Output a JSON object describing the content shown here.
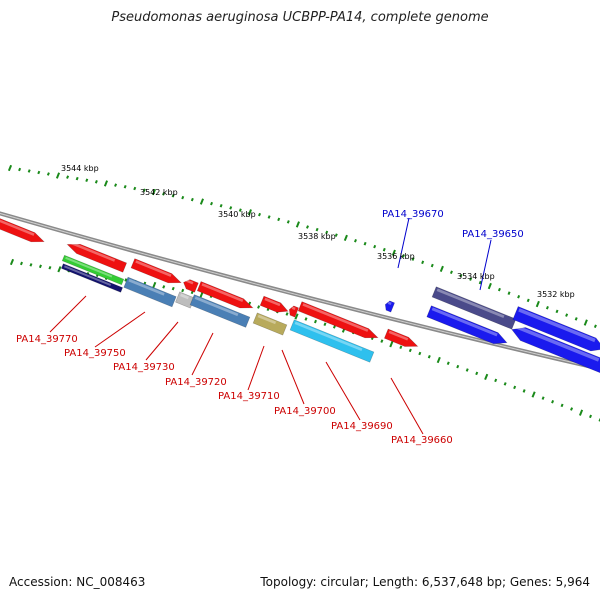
{
  "title": "Pseudomonas aeruginosa UCBPP-PA14, complete genome",
  "footer": {
    "accession": "Accession: NC_008463",
    "topology": "Topology: circular; Length: 6,537,648 bp; Genes: 5,964"
  },
  "scale_labels": [
    "3544 kbp",
    "3542 kbp",
    "3540 kbp",
    "3538 kbp",
    "3536 kbp",
    "3534 kbp",
    "3532 kbp"
  ],
  "gene_labels": [
    {
      "id": "PA14_39770",
      "color": "#cc0000"
    },
    {
      "id": "PA14_39750",
      "color": "#cc0000"
    },
    {
      "id": "PA14_39730",
      "color": "#cc0000"
    },
    {
      "id": "PA14_39720",
      "color": "#cc0000"
    },
    {
      "id": "PA14_39710",
      "color": "#cc0000"
    },
    {
      "id": "PA14_39700",
      "color": "#cc0000"
    },
    {
      "id": "PA14_39690",
      "color": "#cc0000"
    },
    {
      "id": "PA14_39660",
      "color": "#cc0000"
    },
    {
      "id": "PA14_39670",
      "color": "#0000cc"
    },
    {
      "id": "PA14_39650",
      "color": "#0000cc"
    }
  ],
  "colors": {
    "backbone": "#8a8a8a",
    "tick": "#1a8a1a",
    "red_gene": "#ee1111",
    "blue_gene": "#1a1aee",
    "steel_gene": "#4a7fb5",
    "cyan_gene": "#2ec0ee",
    "khaki_gene": "#b8aa5c",
    "green_gene": "#33cc33",
    "navy_gene": "#12126e",
    "purple_gene": "#4a4a8a",
    "gray_gene": "#bdbdbd"
  }
}
